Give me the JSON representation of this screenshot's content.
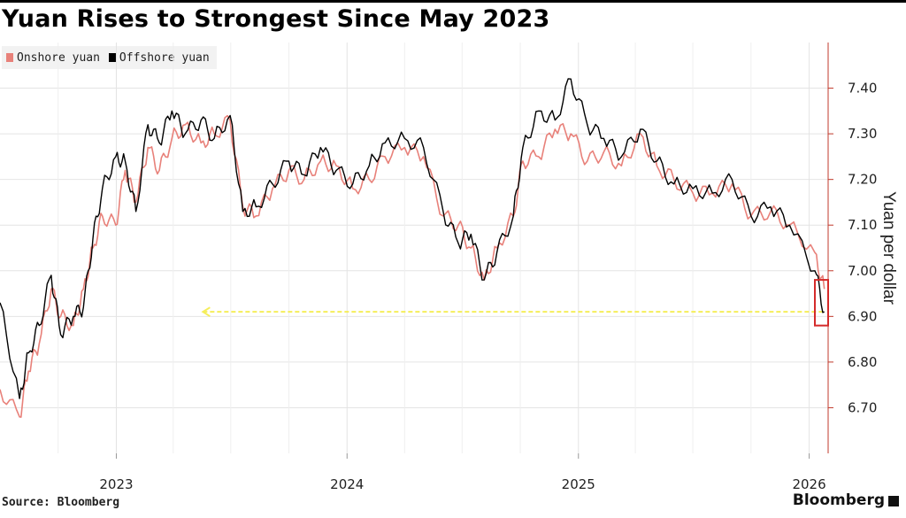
{
  "title": "Yuan Rises to Strongest Since May 2023",
  "footer": {
    "source": "Source: Bloomberg",
    "brand": "Bloomberg"
  },
  "chart_data": {
    "type": "line",
    "ylabel": "Yuan per dollar",
    "ylim": [
      6.6,
      7.5
    ],
    "y_ticks": [
      6.7,
      6.8,
      6.9,
      7.0,
      7.1,
      7.2,
      7.3,
      7.4
    ],
    "y_tick_labels": [
      "6.70",
      "6.80",
      "6.90",
      "7.00",
      "7.10",
      "7.20",
      "7.30",
      "7.40"
    ],
    "x_range": [
      "2022-07-01",
      "2026-01-31"
    ],
    "x_ticks": [
      "2023-01-01",
      "2024-01-01",
      "2025-01-01",
      "2026-01-01"
    ],
    "x_tick_labels": [
      "2023",
      "2024",
      "2025",
      "2026"
    ],
    "grid": true,
    "legend_position": "top-left",
    "colors": {
      "onshore": "#e8817a",
      "offshore": "#000000",
      "axis": "#c0392b",
      "reference": "#f5ee5a",
      "highlight": "#d42a2a"
    },
    "series": [
      {
        "name": "Onshore yuan",
        "x": [
          "2022-07-01",
          "2022-08-01",
          "2022-08-15",
          "2022-09-01",
          "2022-09-20",
          "2022-10-05",
          "2022-10-25",
          "2022-11-10",
          "2022-11-25",
          "2022-12-10",
          "2022-12-31",
          "2023-01-15",
          "2023-02-01",
          "2023-02-20",
          "2023-03-10",
          "2023-03-30",
          "2023-04-20",
          "2023-05-15",
          "2023-06-05",
          "2023-06-30",
          "2023-07-20",
          "2023-08-10",
          "2023-09-05",
          "2023-10-01",
          "2023-10-25",
          "2023-11-20",
          "2023-12-15",
          "2024-01-10",
          "2024-02-05",
          "2024-03-01",
          "2024-04-01",
          "2024-05-01",
          "2024-06-01",
          "2024-06-25",
          "2024-07-15",
          "2024-08-05",
          "2024-08-25",
          "2024-09-20",
          "2024-10-05",
          "2024-10-30",
          "2024-11-25",
          "2024-12-20",
          "2025-01-15",
          "2025-02-10",
          "2025-03-10",
          "2025-04-09",
          "2025-05-05",
          "2025-06-01",
          "2025-07-01",
          "2025-08-01",
          "2025-09-01",
          "2025-10-01",
          "2025-11-01",
          "2025-12-01",
          "2026-01-10",
          "2026-01-25"
        ],
        "values": [
          6.74,
          6.68,
          6.78,
          6.84,
          6.96,
          6.9,
          6.88,
          6.96,
          7.05,
          7.12,
          7.1,
          7.22,
          7.15,
          7.27,
          7.22,
          7.29,
          7.32,
          7.28,
          7.3,
          7.33,
          7.14,
          7.12,
          7.18,
          7.22,
          7.2,
          7.24,
          7.23,
          7.18,
          7.2,
          7.25,
          7.27,
          7.25,
          7.12,
          7.1,
          7.05,
          6.98,
          7.05,
          7.12,
          7.24,
          7.25,
          7.31,
          7.3,
          7.24,
          7.26,
          7.23,
          7.3,
          7.23,
          7.2,
          7.17,
          7.17,
          7.19,
          7.12,
          7.13,
          7.1,
          7.04,
          6.96
        ]
      },
      {
        "name": "Offshore yuan",
        "x": [
          "2022-07-01",
          "2022-08-01",
          "2022-08-15",
          "2022-09-01",
          "2022-09-20",
          "2022-10-05",
          "2022-10-25",
          "2022-11-10",
          "2022-11-25",
          "2022-12-10",
          "2022-12-31",
          "2023-01-15",
          "2023-02-01",
          "2023-02-20",
          "2023-03-10",
          "2023-03-30",
          "2023-04-20",
          "2023-05-15",
          "2023-06-05",
          "2023-06-30",
          "2023-07-20",
          "2023-08-10",
          "2023-09-05",
          "2023-10-01",
          "2023-10-25",
          "2023-11-20",
          "2023-12-15",
          "2024-01-10",
          "2024-02-05",
          "2024-03-01",
          "2024-04-01",
          "2024-05-01",
          "2024-06-01",
          "2024-06-25",
          "2024-07-15",
          "2024-08-05",
          "2024-08-25",
          "2024-09-20",
          "2024-10-05",
          "2024-10-30",
          "2024-11-25",
          "2024-12-20",
          "2025-01-15",
          "2025-02-10",
          "2025-03-10",
          "2025-04-09",
          "2025-05-05",
          "2025-06-01",
          "2025-07-01",
          "2025-08-01",
          "2025-09-01",
          "2025-10-01",
          "2025-11-01",
          "2025-12-01",
          "2026-01-10",
          "2026-01-25"
        ],
        "values": [
          6.93,
          6.72,
          6.82,
          6.88,
          6.99,
          6.86,
          6.9,
          6.92,
          7.07,
          7.18,
          7.25,
          7.24,
          7.13,
          7.32,
          7.28,
          7.35,
          7.3,
          7.33,
          7.29,
          7.34,
          7.13,
          7.14,
          7.19,
          7.24,
          7.21,
          7.27,
          7.22,
          7.19,
          7.23,
          7.28,
          7.29,
          7.27,
          7.13,
          7.06,
          7.08,
          6.98,
          7.04,
          7.12,
          7.27,
          7.35,
          7.33,
          7.42,
          7.32,
          7.29,
          7.25,
          7.31,
          7.24,
          7.19,
          7.18,
          7.17,
          7.2,
          7.12,
          7.14,
          7.1,
          7.0,
          6.91
        ]
      }
    ],
    "reference_line": {
      "y": 6.91,
      "from": "2023-05-18",
      "to": "2026-01-25"
    },
    "highlight_box": {
      "x0": "2026-01-10",
      "x1": "2026-01-31",
      "y0": 6.88,
      "y1": 6.98
    }
  }
}
